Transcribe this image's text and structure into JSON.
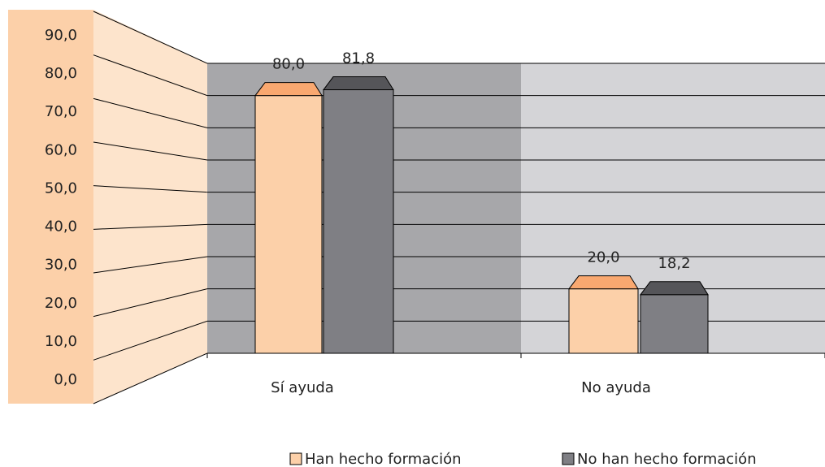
{
  "chart_data": {
    "type": "bar",
    "categories": [
      "Sí ayuda",
      "No ayuda"
    ],
    "series": [
      {
        "name": "Han hecho formación",
        "color": "#fcd0a9",
        "values": [
          80.0,
          20.0
        ],
        "value_labels": [
          "80,0",
          "20,0"
        ]
      },
      {
        "name": "No han hecho formación",
        "color": "#7f7f84",
        "values": [
          81.8,
          18.2
        ],
        "value_labels": [
          "81,8",
          "18,2"
        ]
      }
    ],
    "ylim": [
      0,
      90
    ],
    "yticks": [
      {
        "value": 0,
        "label": "0,0"
      },
      {
        "value": 10,
        "label": "10,0"
      },
      {
        "value": 20,
        "label": "20,0"
      },
      {
        "value": 30,
        "label": "30,0"
      },
      {
        "value": 40,
        "label": "40,0"
      },
      {
        "value": 50,
        "label": "50,0"
      },
      {
        "value": 60,
        "label": "60,0"
      },
      {
        "value": 70,
        "label": "70,0"
      },
      {
        "value": 80,
        "label": "80,0"
      },
      {
        "value": 90,
        "label": "90,0"
      }
    ],
    "grid": true
  }
}
